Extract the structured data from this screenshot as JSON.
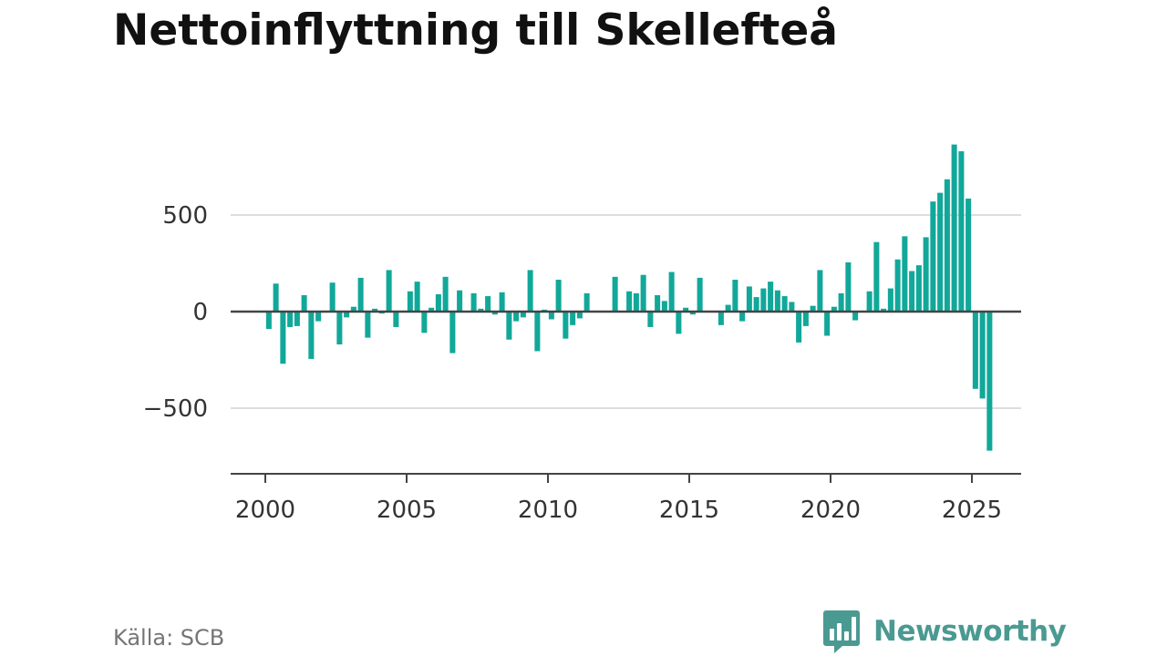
{
  "header": {
    "title": "Nettoinflyttning till Skellefteå"
  },
  "footer": {
    "source": "Källa: SCB",
    "brand": "Newsworthy"
  },
  "colors": {
    "bar": "#11a89a",
    "grid": "#dddddd",
    "axis": "#444444",
    "brand": "#4a9a92"
  },
  "chart_data": {
    "type": "bar",
    "title": "Nettoinflyttning till Skellefteå",
    "xlabel": "",
    "ylabel": "",
    "frequency": "quarterly",
    "x_ticks": [
      "2000",
      "2005",
      "2010",
      "2015",
      "2020",
      "2025"
    ],
    "y_ticks": [
      -500,
      0,
      500
    ],
    "y_tick_labels": [
      "−500",
      "0",
      "500"
    ],
    "xlim": [
      "2000-Q1",
      "2026-Q2"
    ],
    "ylim": [
      -830,
      870
    ],
    "grid": "horizontal",
    "categories": [
      "2000-Q1",
      "2000-Q2",
      "2000-Q3",
      "2000-Q4",
      "2001-Q1",
      "2001-Q2",
      "2001-Q3",
      "2001-Q4",
      "2002-Q1",
      "2002-Q2",
      "2002-Q3",
      "2002-Q4",
      "2003-Q1",
      "2003-Q2",
      "2003-Q3",
      "2003-Q4",
      "2004-Q1",
      "2004-Q2",
      "2004-Q3",
      "2004-Q4",
      "2005-Q1",
      "2005-Q2",
      "2005-Q3",
      "2005-Q4",
      "2006-Q1",
      "2006-Q2",
      "2006-Q3",
      "2006-Q4",
      "2007-Q1",
      "2007-Q2",
      "2007-Q3",
      "2007-Q4",
      "2008-Q1",
      "2008-Q2",
      "2008-Q3",
      "2008-Q4",
      "2009-Q1",
      "2009-Q2",
      "2009-Q3",
      "2009-Q4",
      "2010-Q1",
      "2010-Q2",
      "2010-Q3",
      "2010-Q4",
      "2011-Q1",
      "2011-Q2",
      "2011-Q3",
      "2011-Q4",
      "2012-Q1",
      "2012-Q2",
      "2012-Q3",
      "2012-Q4",
      "2013-Q1",
      "2013-Q2",
      "2013-Q3",
      "2013-Q4",
      "2014-Q1",
      "2014-Q2",
      "2014-Q3",
      "2014-Q4",
      "2015-Q1",
      "2015-Q2",
      "2015-Q3",
      "2015-Q4",
      "2016-Q1",
      "2016-Q2",
      "2016-Q3",
      "2016-Q4",
      "2017-Q1",
      "2017-Q2",
      "2017-Q3",
      "2017-Q4",
      "2018-Q1",
      "2018-Q2",
      "2018-Q3",
      "2018-Q4",
      "2019-Q1",
      "2019-Q2",
      "2019-Q3",
      "2019-Q4",
      "2020-Q1",
      "2020-Q2",
      "2020-Q3",
      "2020-Q4",
      "2021-Q1",
      "2021-Q2",
      "2021-Q3",
      "2021-Q4",
      "2022-Q1",
      "2022-Q2",
      "2022-Q3",
      "2022-Q4",
      "2023-Q1",
      "2023-Q2",
      "2023-Q3",
      "2023-Q4",
      "2024-Q1",
      "2024-Q2",
      "2024-Q3",
      "2024-Q4",
      "2025-Q1",
      "2025-Q2",
      "2025-Q3"
    ],
    "values": [
      -90,
      145,
      -270,
      -80,
      -75,
      85,
      -245,
      -50,
      -5,
      150,
      -170,
      -30,
      25,
      175,
      -135,
      15,
      -10,
      215,
      -80,
      0,
      105,
      155,
      -110,
      20,
      90,
      180,
      -215,
      110,
      0,
      95,
      15,
      80,
      -15,
      100,
      -145,
      -50,
      -30,
      215,
      -205,
      10,
      -40,
      165,
      -140,
      -70,
      -35,
      95,
      0,
      0,
      0,
      180,
      0,
      105,
      95,
      190,
      -80,
      85,
      55,
      205,
      -115,
      20,
      -15,
      175,
      0,
      0,
      -70,
      35,
      165,
      -50,
      130,
      75,
      120,
      155,
      110,
      80,
      50,
      -160,
      -75,
      30,
      215,
      -125,
      25,
      95,
      255,
      -45,
      0,
      105,
      360,
      15,
      120,
      270,
      390,
      210,
      240,
      385,
      570,
      615,
      685,
      865,
      830,
      585,
      -400,
      -450,
      -720
    ]
  }
}
